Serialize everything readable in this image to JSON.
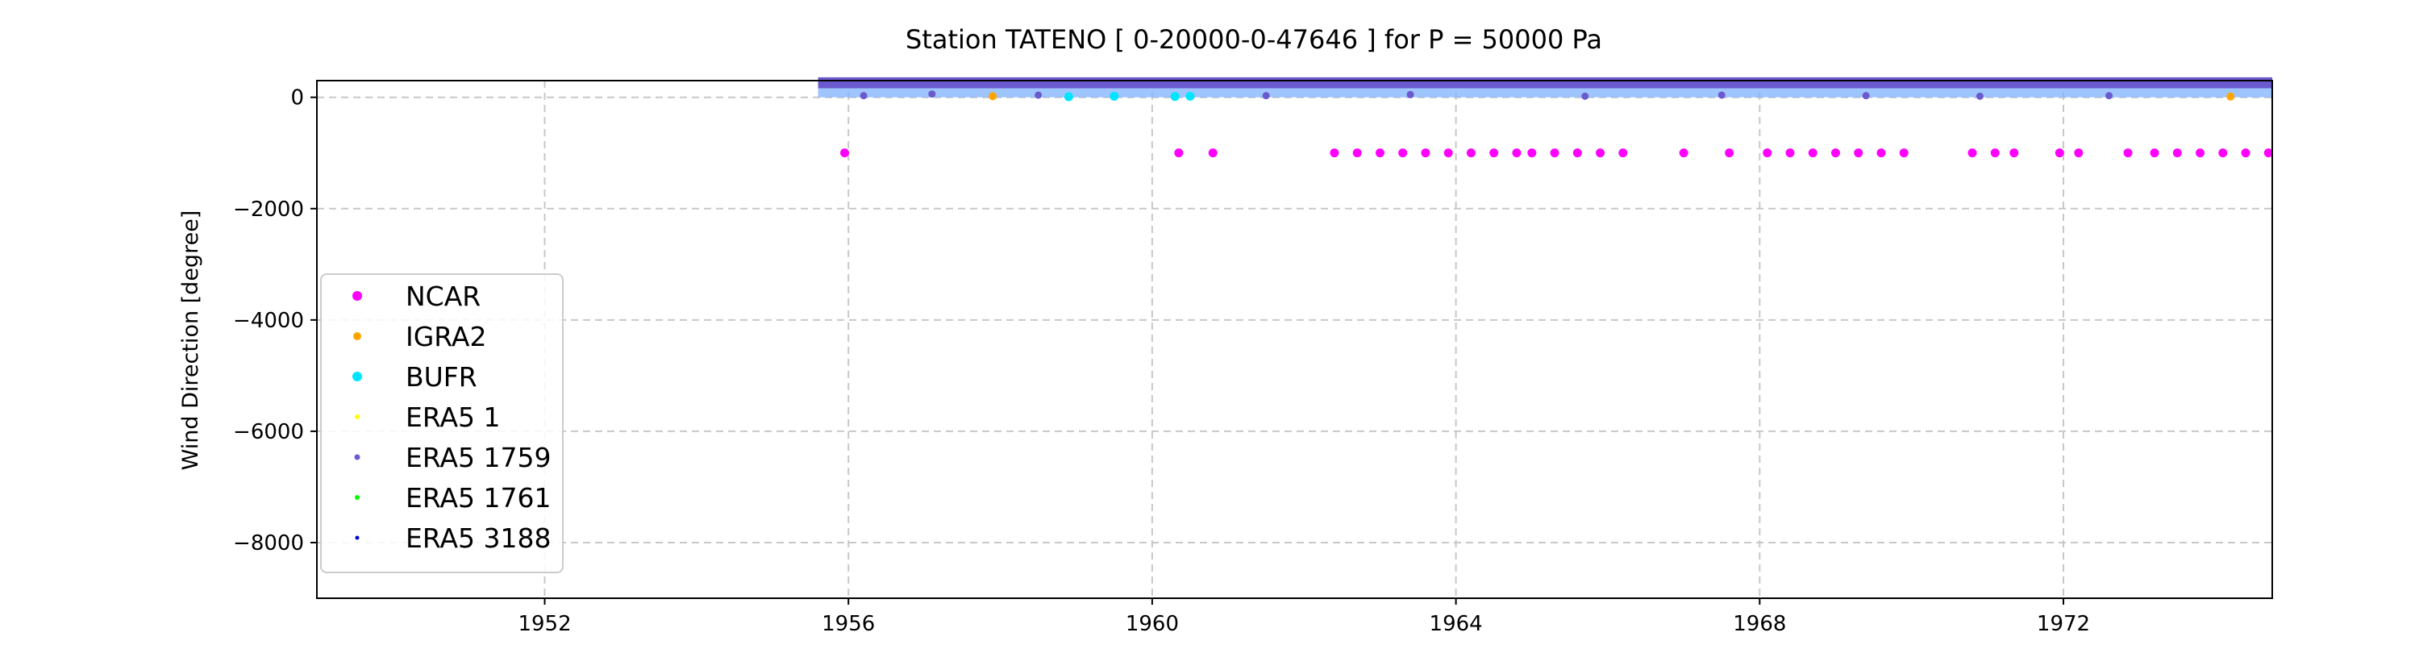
{
  "chart_data": {
    "type": "scatter",
    "title": "Station  TATENO [ 0-20000-0-47646 ]  for P = 50000 Pa",
    "xlabel": "",
    "ylabel": "Wind Direction [degree]",
    "xlim": [
      1949.0,
      1974.75
    ],
    "ylim": [
      -9000,
      300
    ],
    "x_ticks": [
      1952,
      1956,
      1960,
      1964,
      1968,
      1972
    ],
    "y_ticks": [
      0,
      -2000,
      -4000,
      -6000,
      -8000
    ],
    "grid": true,
    "legend_position": "lower-left",
    "band_range": {
      "x": [
        1955.6,
        1974.75
      ],
      "y": [
        0,
        360
      ]
    },
    "series": [
      {
        "name": "NCAR",
        "color": "#ff00ff",
        "x": [
          1955.95,
          1960.35,
          1960.8,
          1962.4,
          1962.7,
          1963.0,
          1963.3,
          1963.6,
          1963.9,
          1964.2,
          1964.5,
          1964.8,
          1965.0,
          1965.3,
          1965.6,
          1965.9,
          1966.2,
          1967.0,
          1967.6,
          1968.1,
          1968.4,
          1968.7,
          1969.0,
          1969.3,
          1969.6,
          1969.9,
          1970.8,
          1971.1,
          1971.35,
          1971.95,
          1972.2,
          1972.85,
          1973.2,
          1973.5,
          1973.8,
          1974.1,
          1974.4,
          1974.7
        ],
        "y": [
          -999,
          -999,
          -999,
          -999,
          -999,
          -999,
          -999,
          -999,
          -999,
          -999,
          -999,
          -999,
          -999,
          -999,
          -999,
          -999,
          -999,
          -999,
          -999,
          -999,
          -999,
          -999,
          -999,
          -999,
          -999,
          -999,
          -999,
          -999,
          -999,
          -999,
          -999,
          -999,
          -999,
          -999,
          -999,
          -999,
          -999,
          -999
        ]
      },
      {
        "name": "IGRA2",
        "color": "#ffa500",
        "x": [
          1957.9,
          1974.2
        ],
        "y": [
          20,
          15
        ]
      },
      {
        "name": "BUFR",
        "color": "#00e5ff",
        "x": [
          1958.9,
          1959.5,
          1960.3,
          1960.5
        ],
        "y": [
          10,
          20,
          15,
          20
        ]
      },
      {
        "name": "ERA5 1",
        "color": "#ffff00",
        "x": [],
        "y": []
      },
      {
        "name": "ERA5 1759",
        "color": "#6a5acd",
        "x": [
          1956.2,
          1957.1,
          1958.5,
          1961.5,
          1963.4,
          1965.7,
          1967.5,
          1969.4,
          1970.9,
          1972.6
        ],
        "y": [
          30,
          60,
          40,
          30,
          50,
          20,
          40,
          30,
          20,
          30
        ]
      },
      {
        "name": "ERA5 1761",
        "color": "#00ff00",
        "x": [],
        "y": []
      },
      {
        "name": "ERA5 3188",
        "color": "#0000cd",
        "x": [],
        "y": []
      }
    ]
  }
}
